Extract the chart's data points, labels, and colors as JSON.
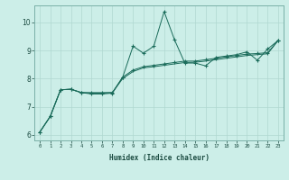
{
  "xlabel": "Humidex (Indice chaleur)",
  "background_color": "#cceee8",
  "line_color": "#1a6b5a",
  "grid_color": "#b0d8d0",
  "xlim": [
    -0.5,
    23.5
  ],
  "ylim": [
    5.8,
    10.6
  ],
  "yticks": [
    6,
    7,
    8,
    9,
    10
  ],
  "xticks": [
    0,
    1,
    2,
    3,
    4,
    5,
    6,
    7,
    8,
    9,
    10,
    11,
    12,
    13,
    14,
    15,
    16,
    17,
    18,
    19,
    20,
    21,
    22,
    23
  ],
  "line1_x": [
    0,
    1,
    2,
    3,
    4,
    5,
    6,
    7,
    8,
    9,
    10,
    11,
    12,
    13,
    14,
    15,
    16,
    17,
    18,
    19,
    20,
    21,
    22,
    23
  ],
  "line1_y": [
    6.1,
    6.65,
    7.6,
    7.62,
    7.5,
    7.45,
    7.45,
    7.48,
    8.05,
    9.15,
    8.9,
    9.15,
    10.38,
    9.38,
    8.55,
    8.55,
    8.45,
    8.75,
    8.8,
    8.85,
    8.95,
    8.65,
    9.05,
    9.35
  ],
  "line2_x": [
    0,
    1,
    2,
    3,
    4,
    5,
    6,
    7,
    8,
    9,
    10,
    11,
    12,
    13,
    14,
    15,
    16,
    17,
    18,
    19,
    20,
    21,
    22,
    23
  ],
  "line2_y": [
    6.1,
    6.65,
    7.6,
    7.62,
    7.5,
    7.5,
    7.5,
    7.5,
    8.05,
    8.3,
    8.42,
    8.47,
    8.52,
    8.57,
    8.62,
    8.62,
    8.67,
    8.72,
    8.77,
    8.82,
    8.87,
    8.89,
    8.92,
    9.35
  ],
  "line3_x": [
    0,
    1,
    2,
    3,
    4,
    5,
    6,
    7,
    8,
    9,
    10,
    11,
    12,
    13,
    14,
    15,
    16,
    17,
    18,
    19,
    20,
    21,
    22,
    23
  ],
  "line3_y": [
    6.1,
    6.65,
    7.6,
    7.62,
    7.5,
    7.48,
    7.48,
    7.5,
    8.0,
    8.25,
    8.38,
    8.42,
    8.47,
    8.52,
    8.57,
    8.58,
    8.62,
    8.67,
    8.72,
    8.77,
    8.82,
    8.85,
    8.88,
    9.35
  ]
}
